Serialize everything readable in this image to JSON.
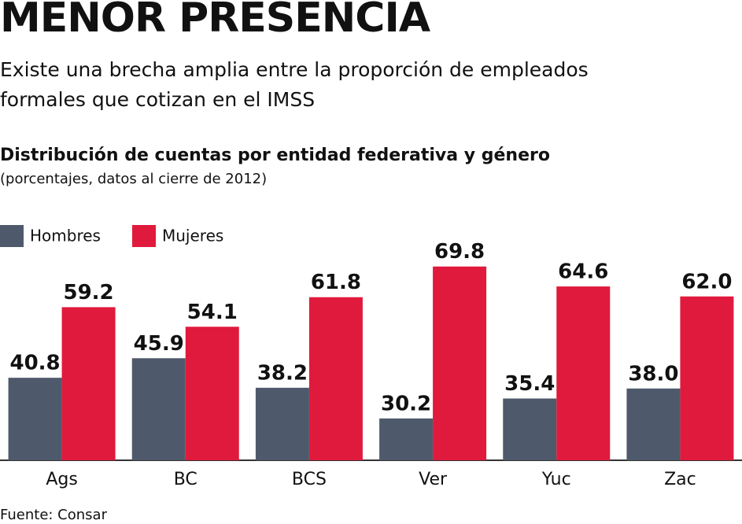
{
  "chart_data": {
    "type": "bar",
    "title": "MENOR PRESENCIA",
    "subtitle": "Existe una brecha amplia entre la proporción de empleados formales que cotizan en el IMSS",
    "chart_title": "Distribución de cuentas por entidad federativa y género",
    "chart_subtitle": "(porcentajes, datos al cierre de 2012)",
    "source": "Fuente: Consar",
    "categories": [
      "Ags",
      "BC",
      "BCS",
      "Ver",
      "Yuc",
      "Zac"
    ],
    "series": [
      {
        "name": "Hombres",
        "color": "#4e5a6c",
        "values": [
          40.8,
          45.9,
          38.2,
          30.2,
          35.4,
          38.0
        ],
        "value_labels": [
          "40.8",
          "45.9",
          "38.2",
          "30.2",
          "35.4",
          "38.0"
        ]
      },
      {
        "name": "Mujeres",
        "color": "#e01a3c",
        "values": [
          59.2,
          54.1,
          61.8,
          69.8,
          64.6,
          62.0
        ],
        "value_labels": [
          "59.2",
          "54.1",
          "61.8",
          "69.8",
          "64.6",
          "62.0"
        ]
      }
    ],
    "ylim": [
      19.3,
      72
    ]
  }
}
